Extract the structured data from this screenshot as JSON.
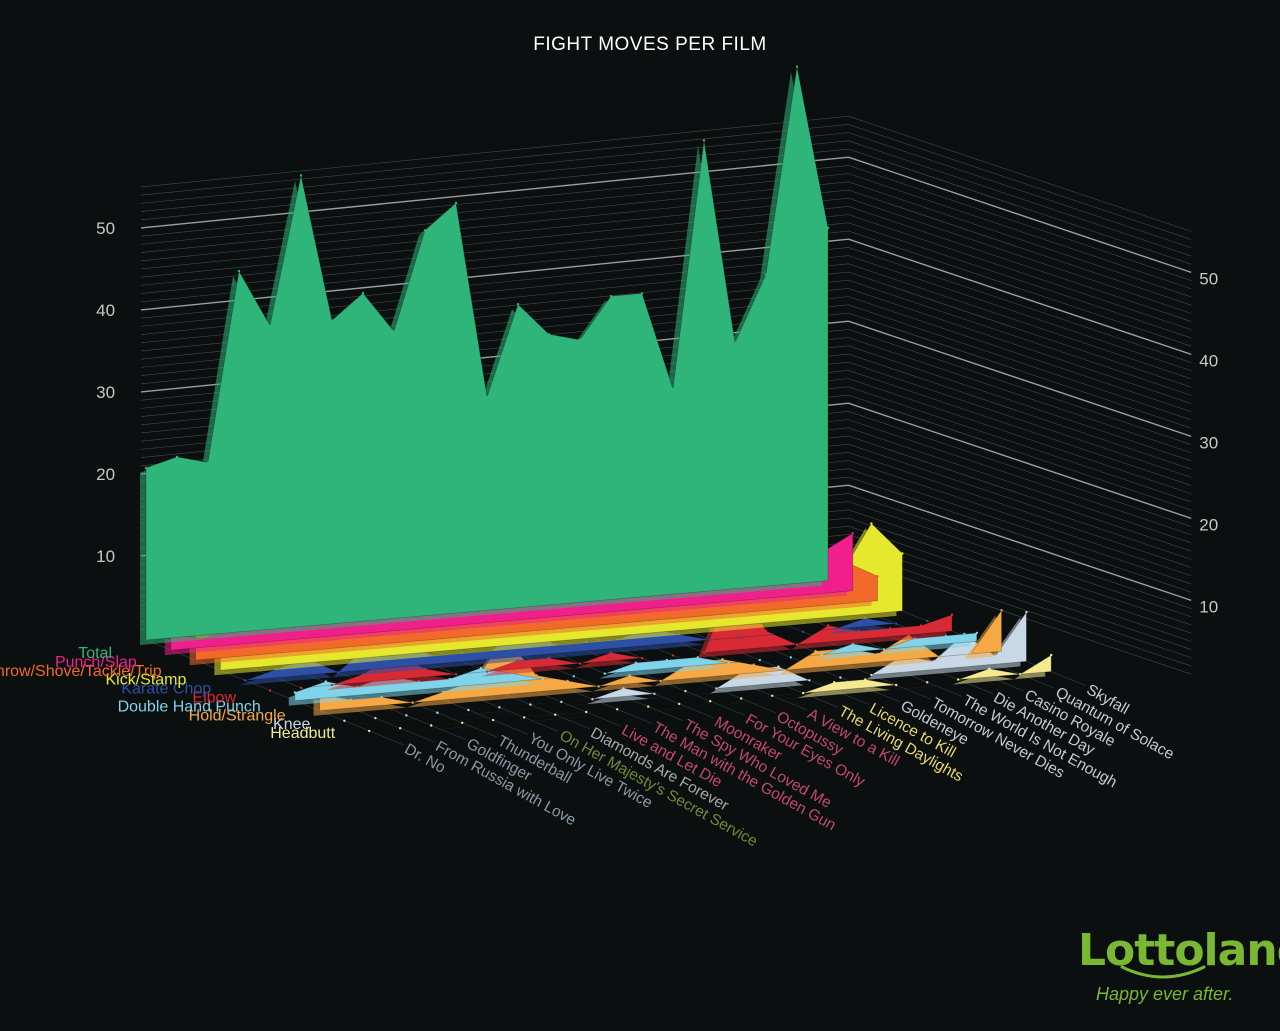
{
  "chart_data": {
    "type": "area",
    "projection": "3d-stacked-ribbons",
    "title": "FIGHT MOVES PER FILM",
    "ylim": [
      0,
      55
    ],
    "y_ticks": [
      10,
      20,
      30,
      40,
      50
    ],
    "grid": true,
    "categories": [
      "Dr. No",
      "From Russia with Love",
      "Goldfinger",
      "Thunderball",
      "You Only Live Twice",
      "On Her Majesty's Secret Service",
      "Diamonds Are Forever",
      "Live and Let Die",
      "The Man with the Golden Gun",
      "The Spy Who Loved Me",
      "Moonraker",
      "For Your Eyes Only",
      "Octopussy",
      "A View to a Kill",
      "The Living Daylights",
      "Licence to Kill",
      "Goldeneye",
      "Tomorrow Never Dies",
      "The World Is Not Enough",
      "Die Another Day",
      "Casino Royale",
      "Quantum of Solace",
      "Skyfall"
    ],
    "category_colors": [
      "#8a9aa6",
      "#8a9aa6",
      "#8a9aa6",
      "#8a9aa6",
      "#8a9aa6",
      "#6f8a3a",
      "#a9a9a9",
      "#c24a6a",
      "#c24a6a",
      "#c24a6a",
      "#c24a6a",
      "#c24a6a",
      "#c24a6a",
      "#c24a6a",
      "#e8d870",
      "#e8d870",
      "#c9c9d6",
      "#c9c9d6",
      "#c9c9d6",
      "#c9c9d6",
      "#c9c9d6",
      "#c9c9d6",
      "#c9c9d6"
    ],
    "series": [
      {
        "name": "Total",
        "color": "#2fb57a",
        "values": [
          21,
          22,
          21,
          44,
          37,
          55,
          37,
          40,
          35,
          47,
          50,
          26,
          37,
          33,
          32,
          37,
          37,
          25,
          55,
          30,
          38,
          63,
          43
        ]
      },
      {
        "name": "Punch/Slap",
        "color": "#f01f8c",
        "values": [
          2,
          1,
          2,
          8,
          10,
          9,
          25,
          10,
          5,
          12,
          16,
          19,
          6,
          13,
          5,
          10,
          13,
          28,
          12,
          23,
          24,
          5,
          7
        ]
      },
      {
        "name": "Throw/Shove/Tackle/Trip",
        "color": "#f26a2a",
        "values": [
          7,
          5,
          4,
          7,
          11,
          13,
          10,
          9,
          5,
          6,
          10,
          6,
          3,
          4,
          6,
          5,
          6,
          4,
          7,
          5,
          4,
          5,
          3
        ]
      },
      {
        "name": "Kick/Stamp",
        "color": "#e6e82e",
        "values": [
          2,
          4,
          5,
          5,
          2,
          7,
          2,
          7,
          3,
          12,
          8,
          3,
          4,
          4,
          5,
          6,
          4,
          6,
          7,
          10,
          5,
          11,
          7
        ]
      },
      {
        "name": "Karate Chop",
        "color": "#2d4fa6",
        "values": [
          0,
          1,
          2,
          0,
          3,
          4,
          1,
          1,
          1,
          4,
          1,
          1,
          1,
          2,
          1,
          0,
          0,
          0,
          0,
          0,
          1,
          0,
          0
        ]
      },
      {
        "name": "Elbow",
        "color": "#d82a35",
        "values": [
          0,
          0,
          0,
          1,
          3,
          1,
          0,
          0,
          1,
          1,
          0,
          1,
          0,
          0,
          0,
          9,
          2,
          0,
          2,
          1,
          1,
          1,
          2
        ]
      },
      {
        "name": "Double Hand Punch",
        "color": "#7fd4ea",
        "values": [
          1,
          2,
          1,
          2,
          1,
          1,
          2,
          1,
          0,
          0,
          0,
          1,
          1,
          1,
          0,
          0,
          0,
          0,
          1,
          0,
          1,
          1,
          1
        ]
      },
      {
        "name": "Hold/Strangle",
        "color": "#f5a843",
        "values": [
          2,
          1,
          1,
          0,
          1,
          2,
          7,
          2,
          1,
          0,
          1,
          0,
          2,
          2,
          1,
          0,
          2,
          2,
          1,
          3,
          0,
          0,
          5
        ]
      },
      {
        "name": "Knee",
        "color": "#c8d8e6",
        "values": [
          0,
          0,
          0,
          0,
          0,
          0,
          0,
          0,
          0,
          1,
          0,
          0,
          0,
          2,
          2,
          0,
          0,
          0,
          2,
          1,
          4,
          1,
          6
        ]
      },
      {
        "name": "Headbutt",
        "color": "#f5ea90",
        "values": [
          0,
          0,
          0,
          0,
          0,
          0,
          0,
          0,
          0,
          0,
          0,
          0,
          0,
          0,
          0,
          1,
          1,
          0,
          0,
          0,
          1,
          0,
          2
        ]
      }
    ]
  },
  "logo": {
    "word": "Lottoland",
    "tagline": "Happy ever after.",
    "color": "#7ab833"
  }
}
